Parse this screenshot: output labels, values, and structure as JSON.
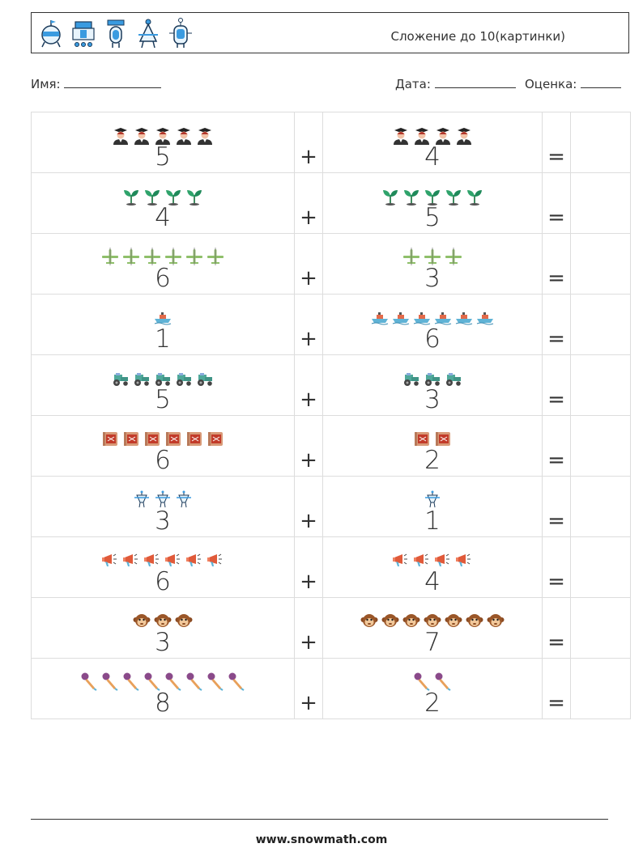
{
  "header": {
    "title": "Сложение до 10(картинки)",
    "robot_icons": [
      "robot-pod-icon",
      "robot-cart-icon",
      "robot-capsule-icon",
      "robot-tripod-icon",
      "robot-antenna-icon"
    ]
  },
  "info": {
    "name_label": "Имя:",
    "date_label": "Дата:",
    "grade_label": "Оценка:"
  },
  "operators": {
    "plus": "+",
    "equals": "="
  },
  "rows": [
    {
      "icon": "graduate-icon",
      "a": "5",
      "b": "4",
      "a_count": 5,
      "b_count": 4
    },
    {
      "icon": "sprout-icon",
      "a": "4",
      "b": "5",
      "a_count": 4,
      "b_count": 5
    },
    {
      "icon": "airplane-icon",
      "a": "6",
      "b": "3",
      "a_count": 6,
      "b_count": 3
    },
    {
      "icon": "ship-icon",
      "a": "1",
      "b": "6",
      "a_count": 1,
      "b_count": 6
    },
    {
      "icon": "tractor-icon",
      "a": "5",
      "b": "3",
      "a_count": 5,
      "b_count": 3
    },
    {
      "icon": "drum-icon",
      "a": "6",
      "b": "2",
      "a_count": 6,
      "b_count": 2
    },
    {
      "icon": "robot-icon",
      "a": "3",
      "b": "1",
      "a_count": 3,
      "b_count": 1
    },
    {
      "icon": "megaphone-icon",
      "a": "6",
      "b": "4",
      "a_count": 6,
      "b_count": 4
    },
    {
      "icon": "monkey-icon",
      "a": "3",
      "b": "7",
      "a_count": 3,
      "b_count": 7
    },
    {
      "icon": "microphone-icon",
      "a": "8",
      "b": "2",
      "a_count": 8,
      "b_count": 2
    }
  ],
  "footer": {
    "url": "www.snowmath.com"
  }
}
